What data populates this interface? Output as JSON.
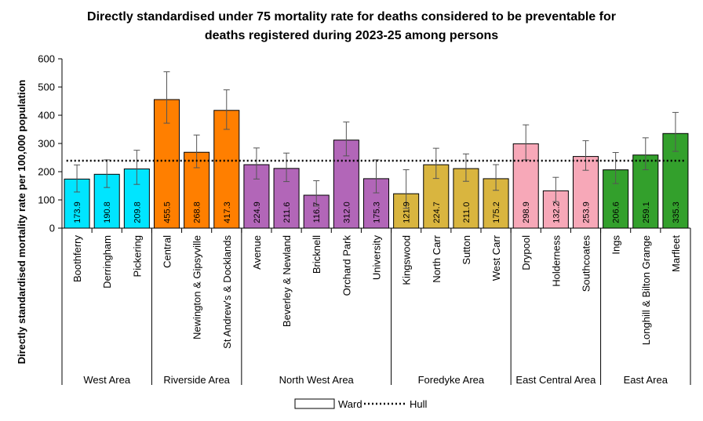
{
  "chart_data": {
    "type": "bar",
    "title_lines": [
      "Directly standardised under 75 mortality rate for deaths considered to be preventable for",
      "deaths registered during 2023-25 among persons"
    ],
    "ylabel": "Directly standardised mortality rate per 100,000 population",
    "ylim": [
      0,
      600
    ],
    "yticks": [
      0,
      100,
      200,
      300,
      400,
      500,
      600
    ],
    "grid": false,
    "legend": {
      "position": "bottom",
      "entries": [
        {
          "label": "Ward",
          "kind": "bar"
        },
        {
          "label": "Hull",
          "kind": "dotted-line"
        }
      ]
    },
    "reference_line": {
      "name": "Hull",
      "value": 239
    },
    "groups": [
      {
        "name": "West Area",
        "color": "#00E5FF",
        "wards": [
          {
            "name": "Boothferry",
            "value": 173.9,
            "label": "173.9",
            "ci": [
              128,
              224
            ]
          },
          {
            "name": "Derringham",
            "value": 190.8,
            "label": "190.8",
            "ci": [
              144,
              242
            ]
          },
          {
            "name": "Pickering",
            "value": 209.8,
            "label": "209.8",
            "ci": [
              155,
              276
            ]
          }
        ]
      },
      {
        "name": "Riverside Area",
        "color": "#FF7F00",
        "wards": [
          {
            "name": "Central",
            "value": 455.5,
            "label": "455.5",
            "ci": [
              372,
              554
            ]
          },
          {
            "name": "Newington & Gipsyville",
            "value": 268.8,
            "label": "268.8",
            "ci": [
              214,
              330
            ]
          },
          {
            "name": "St Andrew's & Docklands",
            "value": 417.3,
            "label": "417.3",
            "ci": [
              350,
              490
            ]
          }
        ]
      },
      {
        "name": "North West Area",
        "color": "#B266B8",
        "wards": [
          {
            "name": "Avenue",
            "value": 224.9,
            "label": "224.9",
            "ci": [
              174,
              284
            ]
          },
          {
            "name": "Beverley & Newland",
            "value": 211.6,
            "label": "211.6",
            "ci": [
              165,
              266
            ]
          },
          {
            "name": "Bricknell",
            "value": 116.7,
            "label": "116.7",
            "ci": [
              78,
              168
            ]
          },
          {
            "name": "Orchard Park",
            "value": 312.0,
            "label": "312.0",
            "ci": [
              256,
              376
            ]
          },
          {
            "name": "University",
            "value": 175.3,
            "label": "175.3",
            "ci": [
              125,
              242
            ]
          }
        ]
      },
      {
        "name": "Foredyke Area",
        "color": "#D9B53F",
        "wards": [
          {
            "name": "Kingswood",
            "value": 121.9,
            "label": "121.9",
            "ci": [
              70,
              207
            ]
          },
          {
            "name": "North Carr",
            "value": 224.7,
            "label": "224.7",
            "ci": [
              176,
              283
            ]
          },
          {
            "name": "Sutton",
            "value": 211.0,
            "label": "211.0",
            "ci": [
              166,
              263
            ]
          },
          {
            "name": "West Carr",
            "value": 175.2,
            "label": "175.2",
            "ci": [
              134,
              225
            ]
          }
        ]
      },
      {
        "name": "East Central Area",
        "color": "#F7A8B8",
        "wards": [
          {
            "name": "Drypool",
            "value": 298.9,
            "label": "298.9",
            "ci": [
              242,
              366
            ]
          },
          {
            "name": "Holderness",
            "value": 132.2,
            "label": "132.2",
            "ci": [
              94,
              180
            ]
          },
          {
            "name": "Southcoates",
            "value": 253.9,
            "label": "253.9",
            "ci": [
              205,
              310
            ]
          }
        ]
      },
      {
        "name": "East Area",
        "color": "#33A02C",
        "wards": [
          {
            "name": "Ings",
            "value": 206.6,
            "label": "206.6",
            "ci": [
              158,
              268
            ]
          },
          {
            "name": "Longhill & Bilton Grange",
            "value": 259.1,
            "label": "259.1",
            "ci": [
              207,
              320
            ]
          },
          {
            "name": "Marfleet",
            "value": 335.3,
            "label": "335.3",
            "ci": [
              272,
              410
            ]
          }
        ]
      }
    ]
  }
}
